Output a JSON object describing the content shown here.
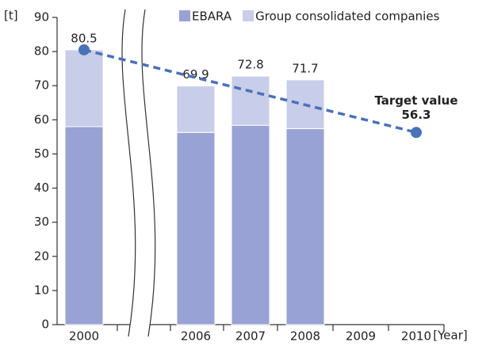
{
  "chart_data": {
    "type": "bar",
    "stacked": true,
    "categories": [
      "2000",
      "2006",
      "2007",
      "2008",
      "2009",
      "2010"
    ],
    "series": [
      {
        "name": "EBARA",
        "color": "#98a2d4",
        "values": [
          58.0,
          56.3,
          58.4,
          57.4,
          null,
          null
        ]
      },
      {
        "name": "Group consolidated companies",
        "color": "#c8cde9",
        "values": [
          22.5,
          13.6,
          14.4,
          14.3,
          null,
          null
        ]
      }
    ],
    "totals": [
      80.5,
      69.9,
      72.8,
      71.7,
      null,
      null
    ],
    "target": {
      "label": "Target value",
      "value": 56.3,
      "color": "#4a72b8"
    },
    "ylabel": "[t]",
    "xlabel": "[Year]",
    "ylim": [
      0,
      90
    ],
    "yticks": [
      0,
      10,
      20,
      30,
      40,
      50,
      60,
      70,
      80,
      90
    ]
  }
}
